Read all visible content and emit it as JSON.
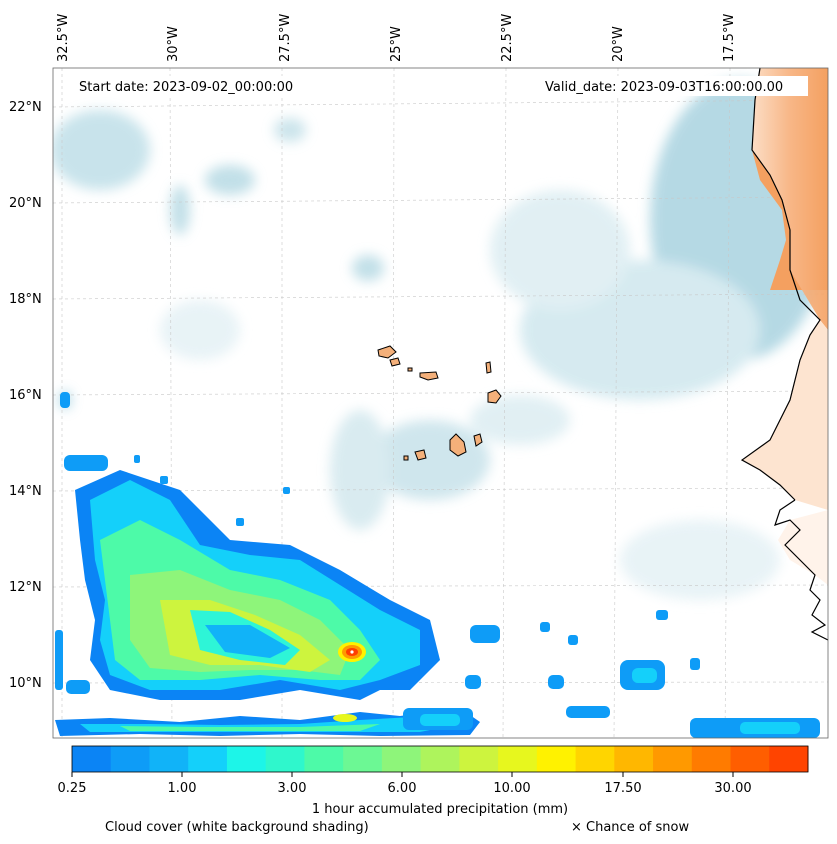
{
  "map": {
    "start_date": "Start date: 2023-09-02_00:00:00",
    "valid_date": "Valid_date: 2023-09-03T16:00:00.00",
    "lon_labels": [
      "32.5°W",
      "30°W",
      "27.5°W",
      "25°W",
      "22.5°W",
      "20°W",
      "17.5°W"
    ],
    "lat_labels": [
      "22°N",
      "20°N",
      "18°N",
      "16°N",
      "14°N",
      "12°N",
      "10°N"
    ],
    "extent": {
      "lon_min": -33,
      "lon_max": -15.5,
      "lat_min": 9,
      "lat_max": 22.8
    },
    "colors": {
      "land": "#f4a060",
      "cloud": "#a9d3e0",
      "precip_low": "#0b84f5",
      "precip_mid": "#4dffa8",
      "precip_high": "#ff3d00"
    }
  },
  "colorbar": {
    "tick_labels": [
      "0.25",
      "1.00",
      "3.00",
      "6.00",
      "10.00",
      "17.50",
      "30.00"
    ],
    "colors": [
      "#0b84f5",
      "#0e9cf7",
      "#11b3f8",
      "#14d0fa",
      "#1df5e8",
      "#2ff7cc",
      "#4dfaa8",
      "#6cf894",
      "#8ef57a",
      "#aef45c",
      "#cdf43e",
      "#e7f71e",
      "#fff200",
      "#ffd500",
      "#ffb700",
      "#ff9900",
      "#ff7b00",
      "#ff5e00",
      "#ff4400"
    ],
    "label": "1 hour accumulated precipitation (mm)"
  },
  "footer": {
    "cloud_note": "Cloud cover (white background shading)",
    "snow_note": "× Chance of snow"
  }
}
